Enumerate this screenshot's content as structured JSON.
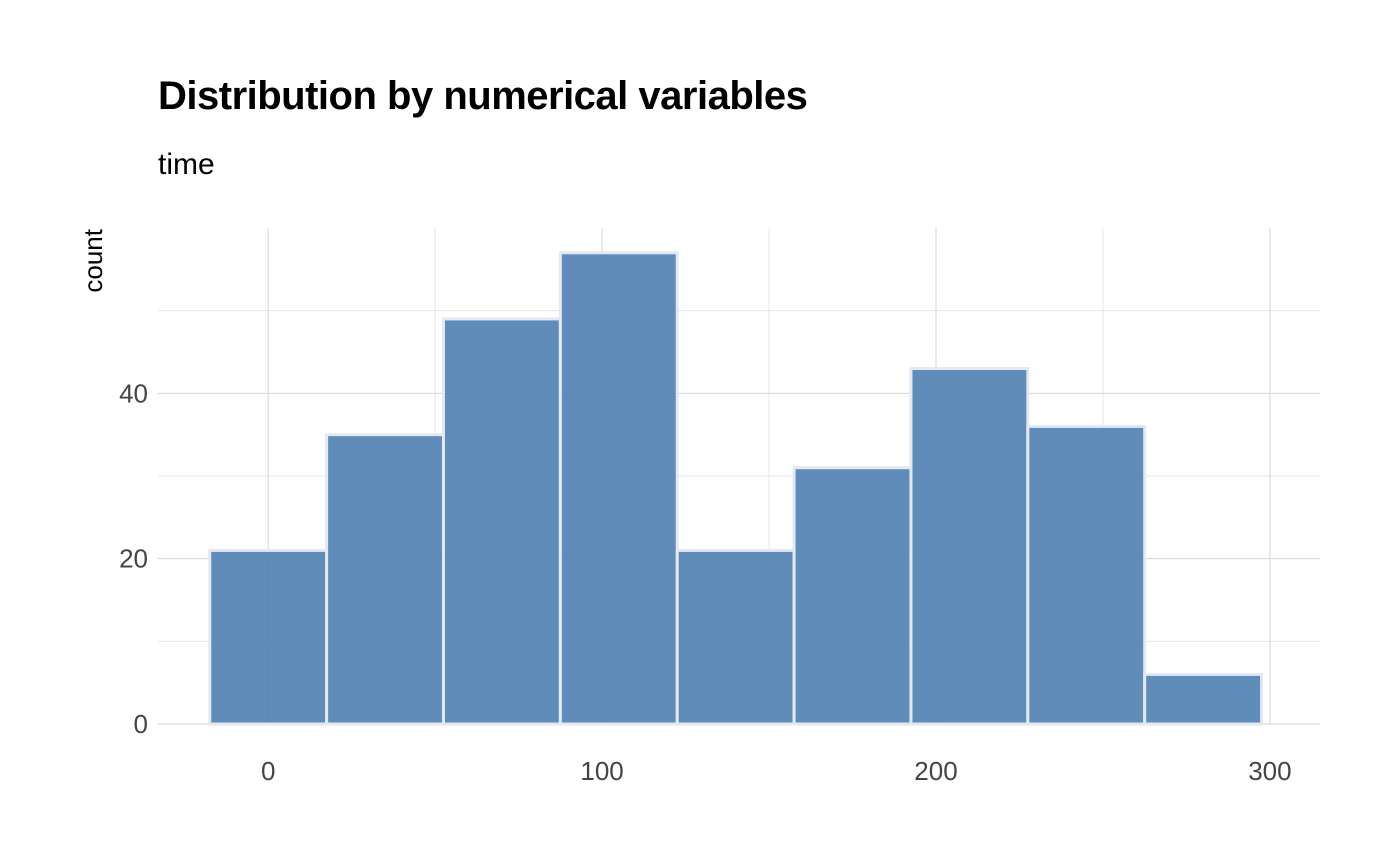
{
  "chart_data": {
    "type": "bar",
    "title": "Distribution by numerical variables",
    "subtitle": "time",
    "xlabel": "",
    "ylabel": "count",
    "bins": [
      {
        "x0": -17.5,
        "x1": 17.5,
        "count": 21
      },
      {
        "x0": 17.5,
        "x1": 52.5,
        "count": 35
      },
      {
        "x0": 52.5,
        "x1": 87.5,
        "count": 49
      },
      {
        "x0": 87.5,
        "x1": 122.5,
        "count": 57
      },
      {
        "x0": 122.5,
        "x1": 157.5,
        "count": 21
      },
      {
        "x0": 157.5,
        "x1": 192.5,
        "count": 31
      },
      {
        "x0": 192.5,
        "x1": 227.5,
        "count": 43
      },
      {
        "x0": 227.5,
        "x1": 262.5,
        "count": 36
      },
      {
        "x0": 262.5,
        "x1": 297.5,
        "count": 6
      }
    ],
    "xlim": [
      -33,
      315
    ],
    "ylim": [
      0,
      60
    ],
    "x_ticks": [
      0,
      100,
      200,
      300
    ],
    "x_tick_labels": [
      "0",
      "100",
      "200",
      "300"
    ],
    "y_ticks": [
      0,
      20,
      40
    ],
    "y_tick_labels": [
      "0",
      "20",
      "40"
    ],
    "grid": true,
    "colors": {
      "bar_fill": "#4f7fb2",
      "bar_stroke": "#e4e8f1",
      "grid_major": "#d4d4d4",
      "grid_minor": "#e6e6e6"
    }
  }
}
